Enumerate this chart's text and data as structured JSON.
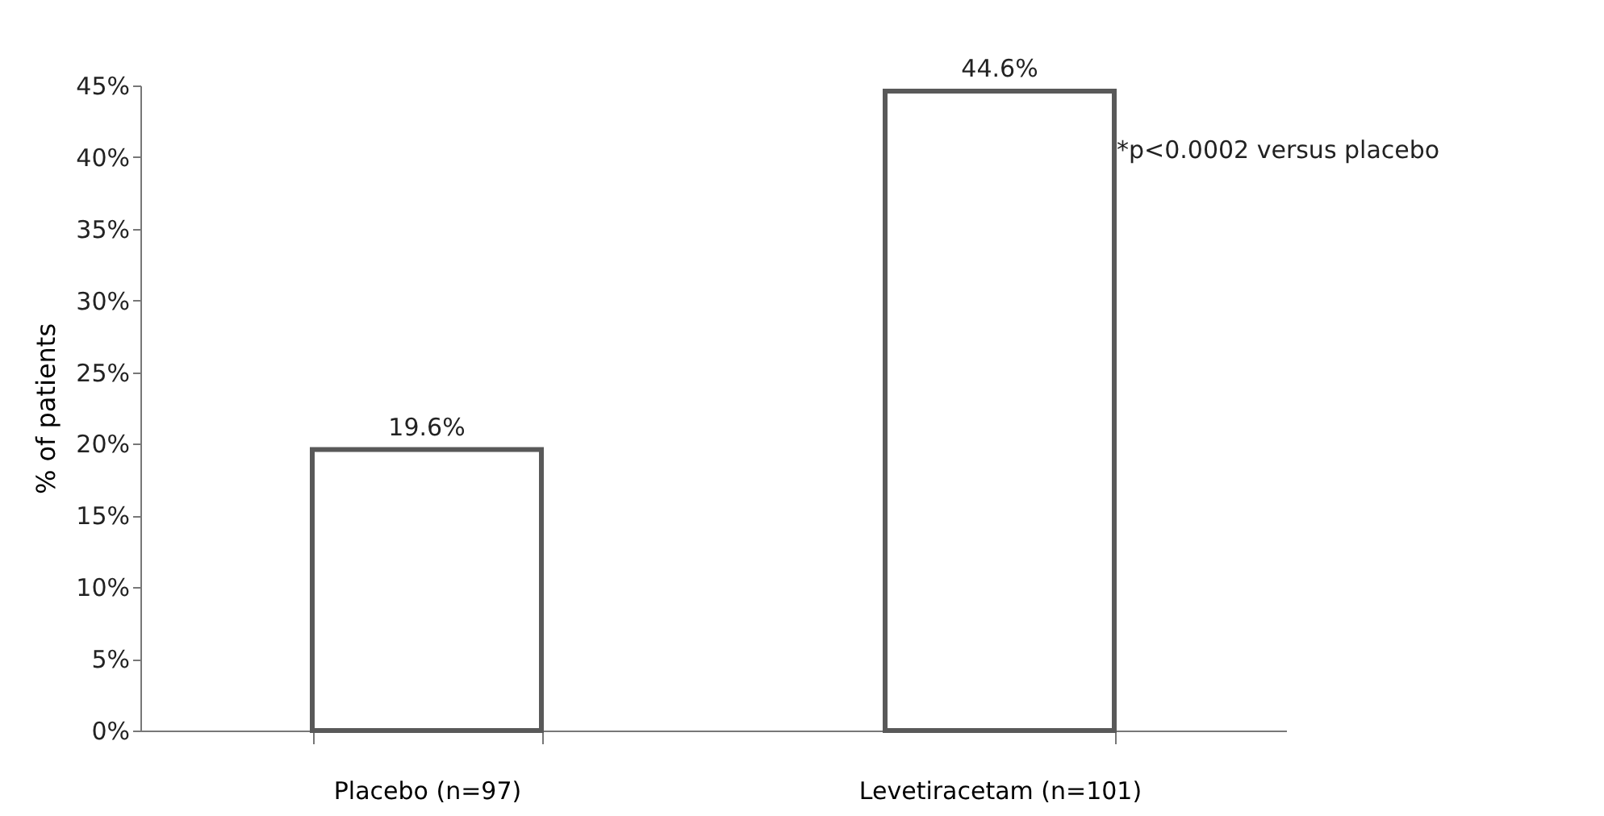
{
  "chart_data": {
    "type": "bar",
    "ylabel": "% of patients",
    "categories": [
      "Placebo (n=97)",
      "Levetiracetam (n=101)"
    ],
    "values": [
      19.6,
      44.6
    ],
    "value_labels": [
      "19.6%",
      "44.6%"
    ],
    "color": "#595959",
    "ylim": [
      0,
      45
    ],
    "yticks": [
      {
        "value": 0,
        "label": "0%"
      },
      {
        "value": 5,
        "label": "5%"
      },
      {
        "value": 10,
        "label": "10%"
      },
      {
        "value": 15,
        "label": "15%"
      },
      {
        "value": 20,
        "label": "20%"
      },
      {
        "value": 25,
        "label": "25%"
      },
      {
        "value": 30,
        "label": "30%"
      },
      {
        "value": 35,
        "label": "35%"
      },
      {
        "value": 40,
        "label": "40%"
      },
      {
        "value": 45,
        "label": "45%"
      }
    ],
    "annotations": [
      "*p<0.0002 versus placebo"
    ],
    "grid": false
  }
}
